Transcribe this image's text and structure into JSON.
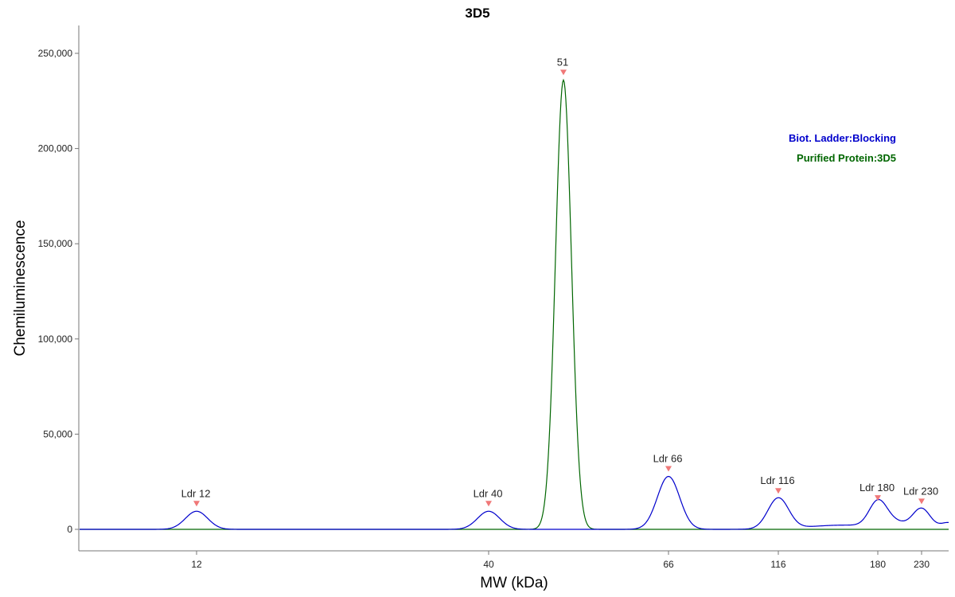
{
  "chart_data": {
    "type": "line",
    "title": "3D5",
    "xlabel": "MW (kDa)",
    "ylabel": "Chemiluminescence",
    "ylim": [
      0,
      250000
    ],
    "yticks": [
      0,
      50000,
      100000,
      150000,
      200000,
      250000
    ],
    "ytick_labels": [
      "0",
      "50,000",
      "100,000",
      "150,000",
      "200,000",
      "250,000"
    ],
    "xticks": [
      12,
      40,
      66,
      116,
      180,
      230
    ],
    "xtick_labels": [
      "12",
      "40",
      "66",
      "116",
      "180",
      "230"
    ],
    "grid": false,
    "legend_position": "top-right",
    "series": [
      {
        "name": "Biot. Ladder:Blocking",
        "color": "#0000cc",
        "peaks": [
          {
            "mw": 12,
            "height": 9500,
            "label": "Ldr 12"
          },
          {
            "mw": 40,
            "height": 9500,
            "label": "Ldr 40"
          },
          {
            "mw": 66,
            "height": 27800,
            "label": "Ldr 66"
          },
          {
            "mw": 116,
            "height": 16200,
            "label": "Ldr 116"
          },
          {
            "mw": 180,
            "height": 12500,
            "label": "Ldr 180"
          },
          {
            "mw": 230,
            "height": 10700,
            "label": "Ldr 230"
          }
        ]
      },
      {
        "name": "Purified Protein:3D5",
        "color": "#006600",
        "peaks": [
          {
            "mw": 51,
            "height": 236000,
            "label": "51"
          }
        ]
      }
    ],
    "marker_color": "#f07878"
  }
}
